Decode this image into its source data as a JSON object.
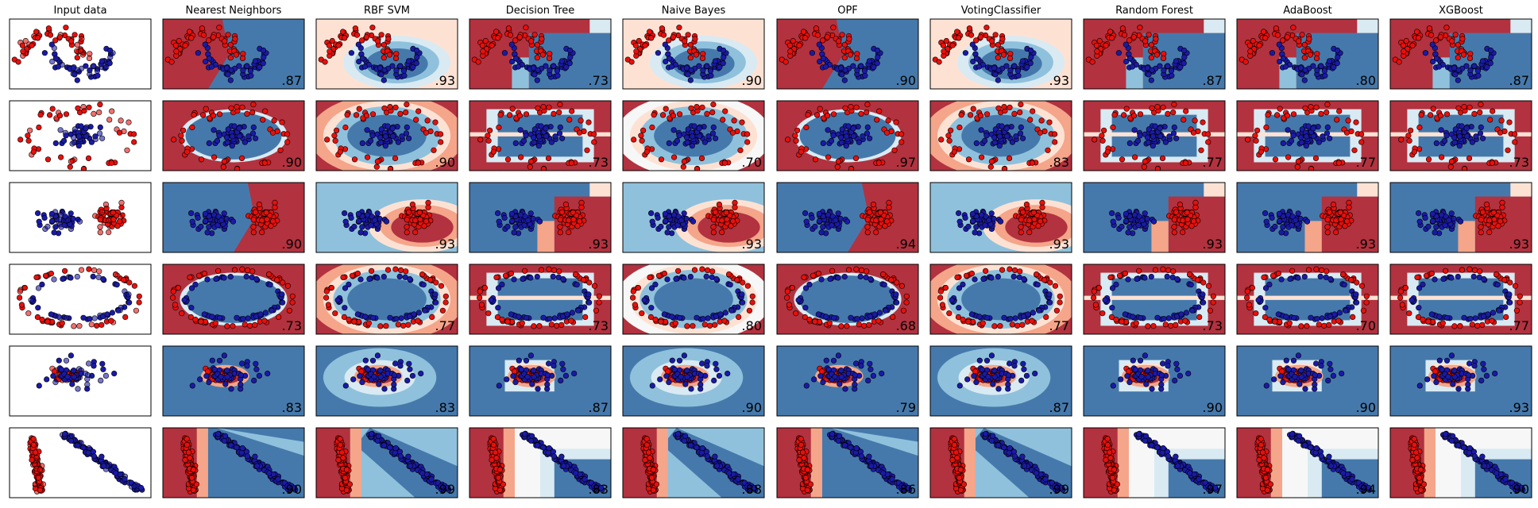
{
  "chart_data": {
    "type": "scatter",
    "columns": [
      "Input data",
      "Nearest Neighbors",
      "RBF SVM",
      "Decision Tree",
      "Naive Bayes",
      "OPF",
      "VotingClassifier",
      "Random Forest",
      "AdaBoost",
      "XGBoost"
    ],
    "rows": [
      {
        "dataset": "moons",
        "scores": [
          "",
          ".87",
          ".93",
          ".73",
          ".90",
          ".90",
          ".93",
          ".87",
          ".80",
          ".87"
        ]
      },
      {
        "dataset": "ellipse",
        "scores": [
          "",
          ".90",
          ".90",
          ".73",
          ".70",
          ".97",
          ".83",
          ".77",
          ".77",
          ".73"
        ]
      },
      {
        "dataset": "linearly separable",
        "scores": [
          "",
          ".90",
          ".93",
          ".93",
          ".93",
          ".94",
          ".93",
          ".93",
          ".93",
          ".93"
        ]
      },
      {
        "dataset": "circles",
        "scores": [
          "",
          ".73",
          ".77",
          ".73",
          ".80",
          ".68",
          ".77",
          ".73",
          ".70",
          ".77"
        ]
      },
      {
        "dataset": "blob",
        "scores": [
          "",
          ".83",
          ".83",
          ".87",
          ".90",
          ".79",
          ".87",
          ".90",
          ".90",
          ".93"
        ]
      },
      {
        "dataset": "diagonal clusters",
        "scores": [
          "",
          ".90",
          ".99",
          ".83",
          ".88",
          ".86",
          ".99",
          ".97",
          ".94",
          ".90"
        ]
      }
    ],
    "colors": {
      "class_red": "#e8100c",
      "class_blue": "#1a1aa8",
      "region_red": "#b2323f",
      "region_red_light": "#f4a58a",
      "region_red_pale": "#fde2d4",
      "region_white": "#f7f7f7",
      "region_blue_pale": "#d9eaf3",
      "region_blue_light": "#8fc1dc",
      "region_blue": "#4679ab"
    },
    "grid": false,
    "legend": "none"
  }
}
